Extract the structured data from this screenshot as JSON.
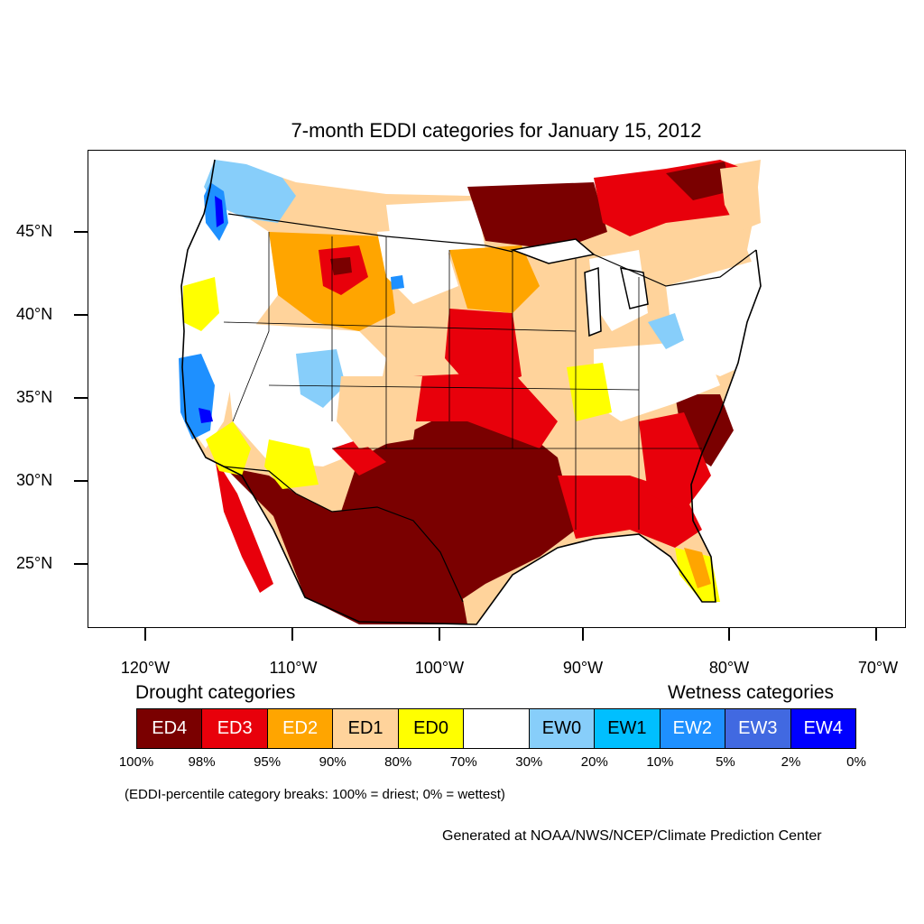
{
  "title": "7-month EDDI categories for January 15, 2012",
  "axes": {
    "lat_labels": [
      "45°N",
      "40°N",
      "35°N",
      "30°N",
      "25°N"
    ],
    "lon_labels": [
      "120°W",
      "110°W",
      "100°W",
      "90°W",
      "80°W",
      "70°W"
    ]
  },
  "legend": {
    "drought_heading": "Drought categories",
    "wetness_heading": "Wetness categories",
    "categories": [
      {
        "label": "ED4",
        "color": "#7a0000",
        "text_color": "#ffffff"
      },
      {
        "label": "ED3",
        "color": "#e8000b",
        "text_color": "#ffffff"
      },
      {
        "label": "ED2",
        "color": "#ffa500",
        "text_color": "#ffffff"
      },
      {
        "label": "ED1",
        "color": "#ffd39b",
        "text_color": "#000000"
      },
      {
        "label": "ED0",
        "color": "#ffff00",
        "text_color": "#000000"
      },
      {
        "label": "",
        "color": "#ffffff",
        "text_color": "#000000"
      },
      {
        "label": "EW0",
        "color": "#87cefa",
        "text_color": "#000000"
      },
      {
        "label": "EW1",
        "color": "#00bfff",
        "text_color": "#000000"
      },
      {
        "label": "EW2",
        "color": "#1e90ff",
        "text_color": "#ffffff"
      },
      {
        "label": "EW3",
        "color": "#4169e1",
        "text_color": "#ffffff"
      },
      {
        "label": "EW4",
        "color": "#0000ff",
        "text_color": "#ffffff"
      }
    ],
    "breaks": [
      "100%",
      "98%",
      "95%",
      "90%",
      "80%",
      "70%",
      "30%",
      "20%",
      "10%",
      "5%",
      "2%",
      "0%"
    ]
  },
  "note": "(EDDI-percentile category breaks: 100% = driest; 0% = wettest)",
  "credit": "Generated at NOAA/NWS/NCEP/Climate Prediction Center"
}
